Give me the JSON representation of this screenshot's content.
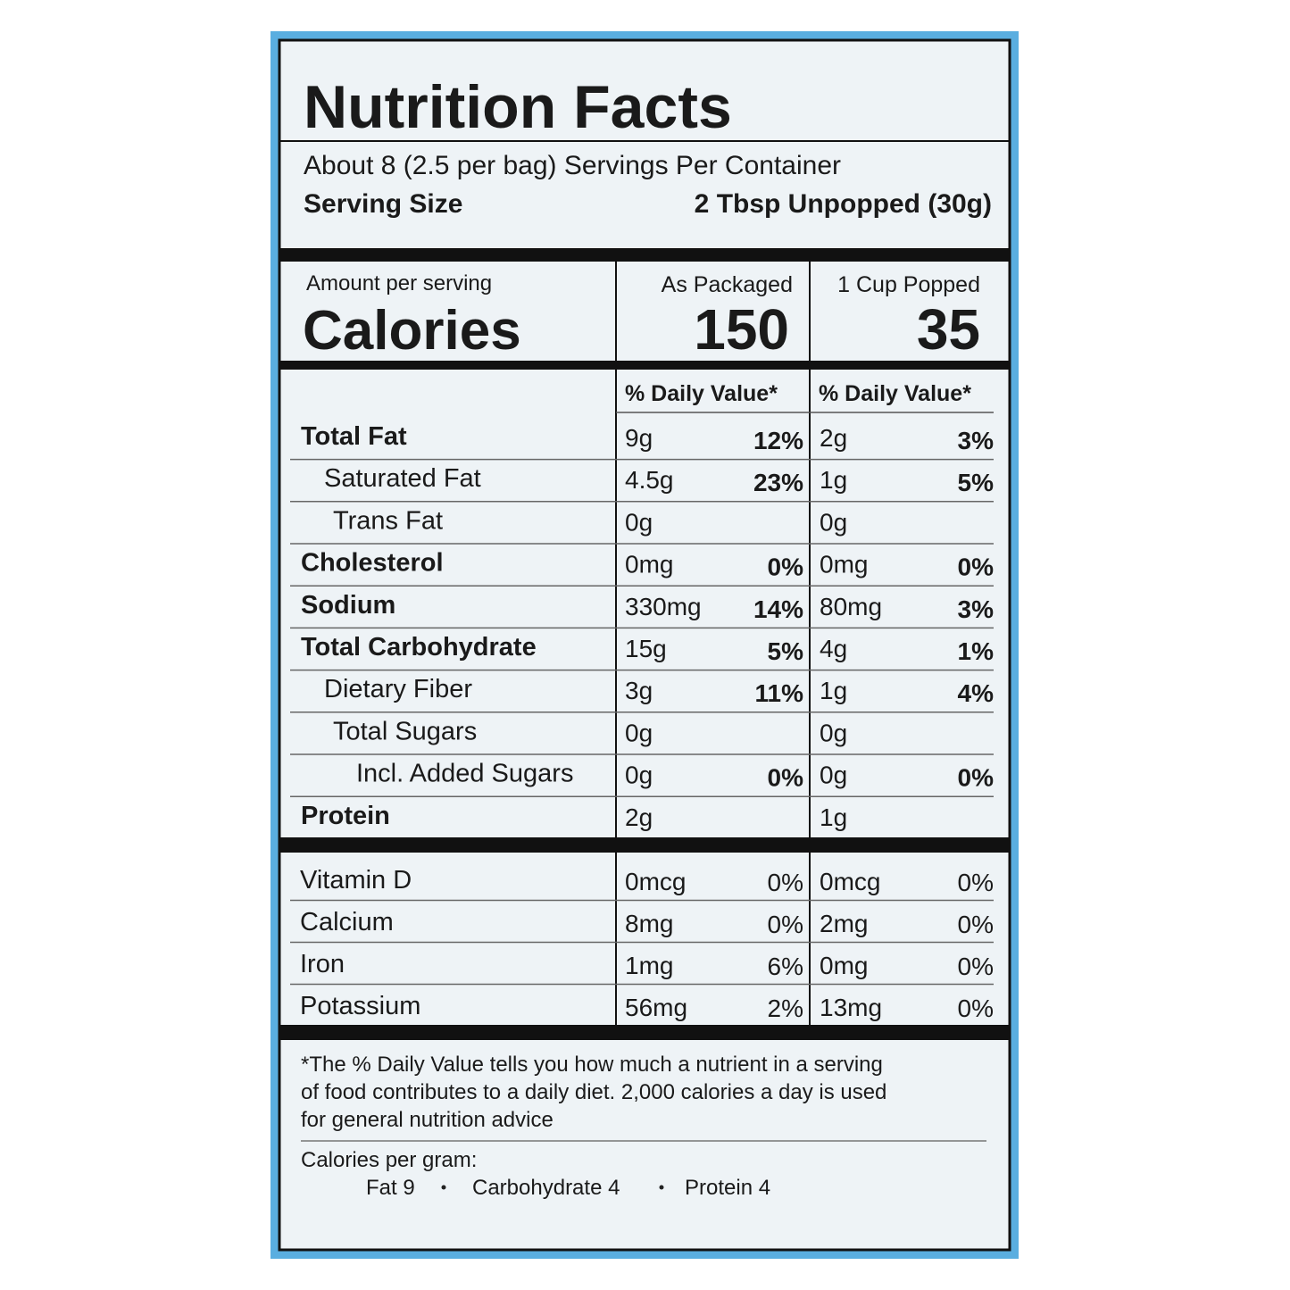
{
  "title": "Nutrition Facts",
  "servings": "About 8 (2.5 per bag) Servings Per Container",
  "serving_size": {
    "label": "Serving Size",
    "value": "2 Tbsp Unpopped (30g)"
  },
  "calories": {
    "amount_label": "Amount per serving",
    "label": "Calories",
    "columns": [
      {
        "header": "As Packaged",
        "value": "150"
      },
      {
        "header": "1 Cup Popped",
        "value": "35"
      }
    ]
  },
  "dv_headers": [
    "% Daily Value*",
    "% Daily Value*"
  ],
  "nutrients": [
    {
      "name": "Total Fat",
      "bold": true,
      "level": 0,
      "cells": [
        [
          "9g",
          "12%"
        ],
        [
          "2g",
          "3%"
        ]
      ]
    },
    {
      "name": "Saturated Fat",
      "bold": false,
      "level": 1,
      "cells": [
        [
          "4.5g",
          "23%"
        ],
        [
          "1g",
          "5%"
        ]
      ]
    },
    {
      "name": "Trans Fat",
      "bold": false,
      "level": 2,
      "cells": [
        [
          "0g"
        ],
        [
          "0g"
        ]
      ]
    },
    {
      "name": "Cholesterol",
      "bold": true,
      "level": 0,
      "cells": [
        [
          "0mg",
          "0%"
        ],
        [
          "0mg",
          "0%"
        ]
      ]
    },
    {
      "name": "Sodium",
      "bold": true,
      "level": 0,
      "cells": [
        [
          "330mg",
          "14%"
        ],
        [
          "80mg",
          "3%"
        ]
      ]
    },
    {
      "name": "Total Carbohydrate",
      "bold": true,
      "level": 0,
      "cells": [
        [
          "15g",
          "5%"
        ],
        [
          "4g",
          "1%"
        ]
      ]
    },
    {
      "name": "Dietary Fiber",
      "bold": false,
      "level": 1,
      "cells": [
        [
          "3g",
          "11%"
        ],
        [
          "1g",
          "4%"
        ]
      ]
    },
    {
      "name": "Total Sugars",
      "bold": false,
      "level": 2,
      "cells": [
        [
          "0g"
        ],
        [
          "0g"
        ]
      ]
    },
    {
      "name": "Incl. Added Sugars",
      "bold": false,
      "level": 3,
      "cells": [
        [
          "0g",
          "0%"
        ],
        [
          "0g",
          "0%"
        ]
      ]
    },
    {
      "name": "Protein",
      "bold": true,
      "level": 0,
      "cells": [
        [
          "2g"
        ],
        [
          "1g"
        ]
      ]
    }
  ],
  "vitamins": [
    {
      "name": "Vitamin D",
      "cells": [
        [
          "0mcg",
          "0%"
        ],
        [
          "0mcg",
          "0%"
        ]
      ]
    },
    {
      "name": "Calcium",
      "cells": [
        [
          "8mg",
          "0%"
        ],
        [
          "2mg",
          "0%"
        ]
      ]
    },
    {
      "name": "Iron",
      "cells": [
        [
          "1mg",
          "6%"
        ],
        [
          "0mg",
          "0%"
        ]
      ]
    },
    {
      "name": "Potassium",
      "cells": [
        [
          "56mg",
          "2%"
        ],
        [
          "13mg",
          "0%"
        ]
      ]
    }
  ],
  "footnote": [
    "*The % Daily Value tells you how much a nutrient in a serving",
    "of food contributes to a daily diet. 2,000 calories a day is used",
    "for general nutrition advice"
  ],
  "calories_per_gram": {
    "label": "Calories per gram:",
    "items": [
      "Fat 9",
      "Carbohydrate 4",
      "Protein 4"
    ]
  }
}
